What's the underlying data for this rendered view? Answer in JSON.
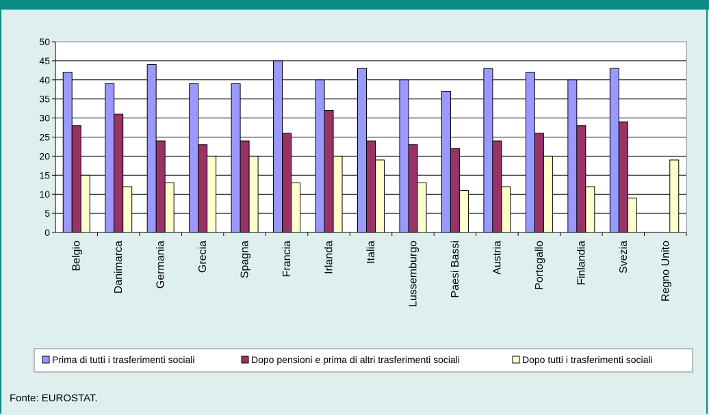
{
  "chart_data": {
    "type": "bar",
    "categories": [
      "Belgio",
      "Danimarca",
      "Germania",
      "Grecia",
      "Spagna",
      "Francia",
      "Irlanda",
      "Italia",
      "Lussemburgo",
      "Paesi Bassi",
      "Austria",
      "Portogallo",
      "Finlandia",
      "Svezia",
      "Regno Unito"
    ],
    "series": [
      {
        "name": "Prima di tutti i trasferimenti sociali",
        "color": "#9999ff",
        "values": [
          42,
          39,
          44,
          39,
          39,
          45,
          40,
          43,
          40,
          37,
          43,
          42,
          40,
          43,
          null
        ]
      },
      {
        "name": "Dopo pensioni e prima di altri trasferimenti sociali",
        "color": "#993366",
        "values": [
          28,
          31,
          24,
          23,
          24,
          26,
          32,
          24,
          23,
          22,
          24,
          26,
          28,
          29,
          null
        ]
      },
      {
        "name": "Dopo tutti i trasferimenti sociali",
        "color": "#ffffcc",
        "values": [
          15,
          12,
          13,
          20,
          20,
          13,
          20,
          19,
          13,
          11,
          12,
          20,
          12,
          9,
          19
        ]
      }
    ],
    "ylim": [
      0,
      50
    ],
    "yticks": [
      0,
      5,
      10,
      15,
      20,
      25,
      30,
      35,
      40,
      45,
      50
    ],
    "grid": true,
    "legend": "bottom"
  },
  "source": "Fonte: EUROSTAT."
}
